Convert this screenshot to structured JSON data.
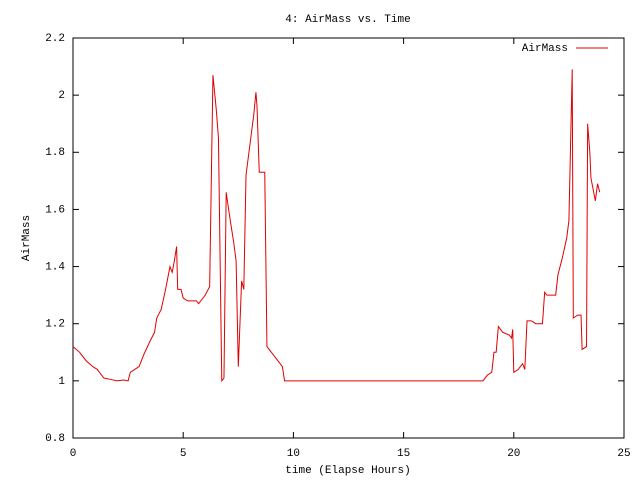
{
  "chart_data": {
    "type": "line",
    "title": "4: AirMass vs. Time",
    "x_label": "time (Elapse Hours)",
    "y_label": "AirMass",
    "x": [
      0,
      0.3,
      0.6,
      0.9,
      1.1,
      1.2,
      1.4,
      1.7,
      2.0,
      2.3,
      2.5,
      2.6,
      2.8,
      3.0,
      3.2,
      3.5,
      3.7,
      3.8,
      4.0,
      4.2,
      4.4,
      4.5,
      4.6,
      4.7,
      4.75,
      4.9,
      5.0,
      5.2,
      5.4,
      5.6,
      5.7,
      5.9,
      6.0,
      6.2,
      6.35,
      6.5,
      6.6,
      6.75,
      6.85,
      6.95,
      7.1,
      7.3,
      7.4,
      7.5,
      7.65,
      7.75,
      7.85,
      8.0,
      8.2,
      8.3,
      8.35,
      8.45,
      8.7,
      8.8,
      9.0,
      9.3,
      9.5,
      9.6,
      18.6,
      18.8,
      19.0,
      19.1,
      19.2,
      19.3,
      19.5,
      19.8,
      19.9,
      19.95,
      20.0,
      20.2,
      20.4,
      20.5,
      20.6,
      20.8,
      21.0,
      21.3,
      21.4,
      21.5,
      21.9,
      22.0,
      22.2,
      22.4,
      22.5,
      22.65,
      22.7,
      22.9,
      23.05,
      23.1,
      23.3,
      23.35,
      23.45,
      23.5,
      23.7,
      23.8,
      23.9
    ],
    "series": [
      {
        "name": "AirMass",
        "color": "#e00000",
        "values": [
          1.12,
          1.1,
          1.07,
          1.05,
          1.04,
          1.03,
          1.01,
          1.005,
          1.0,
          1.003,
          1.0,
          1.03,
          1.04,
          1.05,
          1.09,
          1.14,
          1.17,
          1.22,
          1.25,
          1.32,
          1.4,
          1.38,
          1.42,
          1.47,
          1.32,
          1.32,
          1.29,
          1.28,
          1.28,
          1.28,
          1.27,
          1.29,
          1.3,
          1.33,
          2.07,
          1.95,
          1.85,
          1.0,
          1.01,
          1.66,
          1.58,
          1.48,
          1.42,
          1.05,
          1.35,
          1.32,
          1.72,
          1.81,
          1.93,
          2.01,
          1.96,
          1.73,
          1.73,
          1.12,
          1.1,
          1.07,
          1.05,
          1.0,
          1.0,
          1.02,
          1.03,
          1.1,
          1.1,
          1.19,
          1.17,
          1.16,
          1.15,
          1.18,
          1.03,
          1.04,
          1.06,
          1.04,
          1.21,
          1.21,
          1.2,
          1.2,
          1.31,
          1.3,
          1.3,
          1.37,
          1.43,
          1.5,
          1.56,
          2.09,
          1.22,
          1.23,
          1.23,
          1.11,
          1.12,
          1.9,
          1.8,
          1.71,
          1.63,
          1.69,
          1.66
        ]
      }
    ],
    "xlim": [
      0,
      25
    ],
    "xticks": [
      0,
      5,
      10,
      15,
      20,
      25
    ],
    "ylim": [
      0.8,
      2.2
    ],
    "yticks": [
      0.8,
      1,
      1.2,
      1.4,
      1.6,
      1.8,
      2,
      2.2
    ],
    "legend": "upper right"
  }
}
